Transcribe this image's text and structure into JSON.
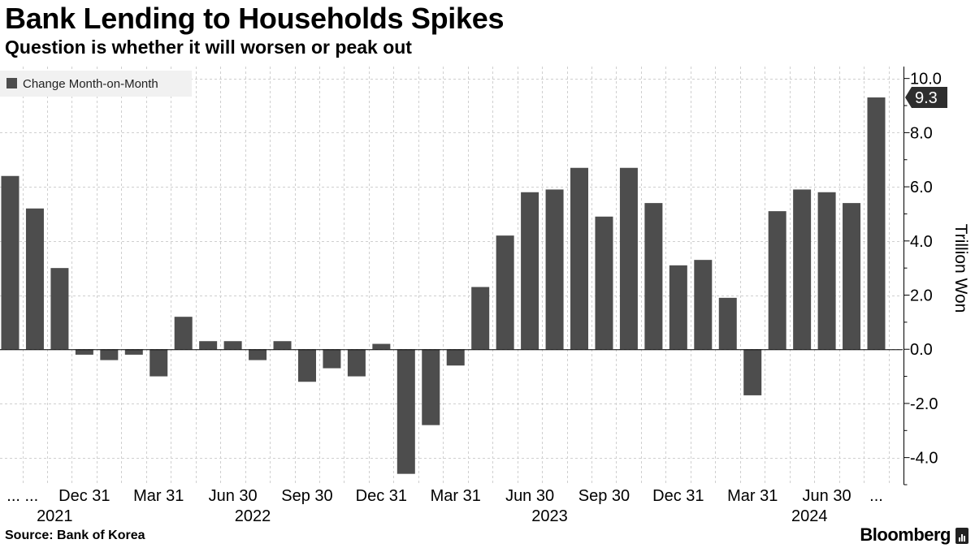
{
  "header": {
    "title": "Bank Lending to Households Spikes",
    "subtitle": "Question is whether it will worsen or peak out"
  },
  "footer": {
    "source": "Source: Bank of Korea",
    "brand": "Bloomberg"
  },
  "colors": {
    "bar": "#4d4d4d",
    "grid": "#cfcfcf",
    "axis": "#000000",
    "legend_bg": "#f1f1f1",
    "callout": "#2e2e2e"
  },
  "chart_data": {
    "type": "bar",
    "title": "Bank Lending to Households Spikes",
    "subtitle": "Question is whether it will worsen or peak out",
    "ylabel": "Trillion Won",
    "ylim": [
      -5.0,
      10.5
    ],
    "yticks": [
      -4.0,
      -2.0,
      0.0,
      2.0,
      4.0,
      6.0,
      8.0,
      10.0
    ],
    "ytick_labels": [
      "-4.0",
      "-2.0",
      "0.0",
      "2.0",
      "4.0",
      "6.0",
      "8.0",
      "10.0"
    ],
    "grid": true,
    "legend": {
      "position": "top-left",
      "entries": [
        "Change Month-on-Month"
      ]
    },
    "series": [
      {
        "name": "Change Month-on-Month",
        "values": [
          6.4,
          5.2,
          3.0,
          -0.2,
          -0.4,
          -0.2,
          -1.0,
          1.2,
          0.3,
          0.3,
          -0.4,
          0.3,
          -1.2,
          -0.7,
          -1.0,
          0.2,
          -4.6,
          -2.8,
          -0.6,
          2.3,
          4.2,
          5.8,
          5.9,
          6.7,
          4.9,
          6.7,
          5.4,
          3.1,
          3.3,
          1.9,
          -1.7,
          5.1,
          5.9,
          5.8,
          5.4,
          9.3
        ]
      }
    ],
    "x_tick_labels": [
      {
        "text": "... ...",
        "bar": 0.5
      },
      {
        "text": "Dec 31",
        "bar": 3
      },
      {
        "text": "Mar 31",
        "bar": 6
      },
      {
        "text": "Jun 30",
        "bar": 9
      },
      {
        "text": "Sep 30",
        "bar": 12
      },
      {
        "text": "Dec 31",
        "bar": 15
      },
      {
        "text": "Mar 31",
        "bar": 18
      },
      {
        "text": "Jun 30",
        "bar": 21
      },
      {
        "text": "Sep 30",
        "bar": 24
      },
      {
        "text": "Dec 31",
        "bar": 27
      },
      {
        "text": "Mar 31",
        "bar": 30
      },
      {
        "text": "Jun 30",
        "bar": 33
      },
      {
        "text": "...",
        "bar": 35
      }
    ],
    "year_labels": [
      {
        "text": "2021",
        "bar": 1.8
      },
      {
        "text": "2022",
        "bar": 9.8
      },
      {
        "text": "2023",
        "bar": 21.8
      },
      {
        "text": "2024",
        "bar": 32.3
      }
    ],
    "last_value_label": "9.3"
  }
}
